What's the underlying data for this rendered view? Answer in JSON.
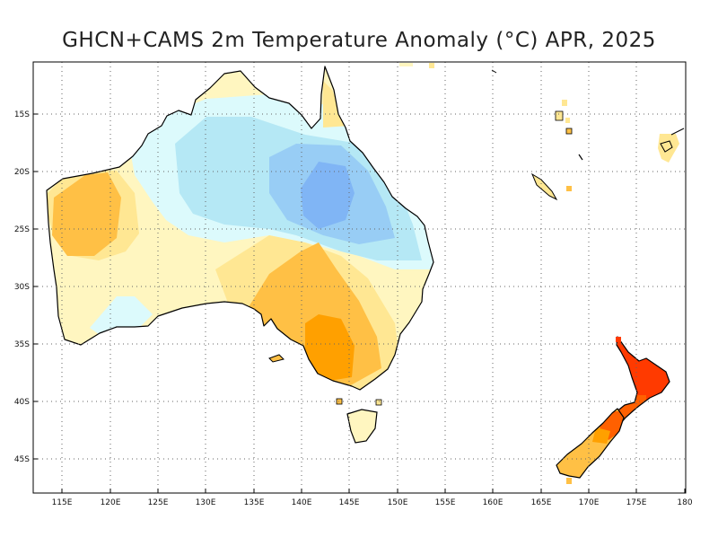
{
  "title": "GHCN+CAMS 2m Temperature Anomaly (°C) APR, 2025",
  "axes": {
    "x_ticks": [
      "115E",
      "120E",
      "125E",
      "130E",
      "135E",
      "140E",
      "145E",
      "150E",
      "155E",
      "160E",
      "165E",
      "170E",
      "175E",
      "180"
    ],
    "y_ticks": [
      "15S",
      "20S",
      "25S",
      "30S",
      "35S",
      "40S",
      "45S"
    ]
  },
  "map": {
    "region": "Australia / New Zealand",
    "lon_range": [
      111.5,
      180
    ],
    "lat_range": [
      -48,
      -10.5
    ],
    "grid": true
  },
  "colors": {
    "very_cool": "#80b5f5",
    "cool": "#98cdf5",
    "cool_light": "#b5e8f5",
    "slightly_cool": "#dcfafc",
    "slightly_warm": "#fff6c0",
    "warm": "#ffe793",
    "warm_medium": "#ffc045",
    "hot": "#ffa000",
    "very_hot": "#ff6000",
    "extreme": "#ff3a00"
  }
}
